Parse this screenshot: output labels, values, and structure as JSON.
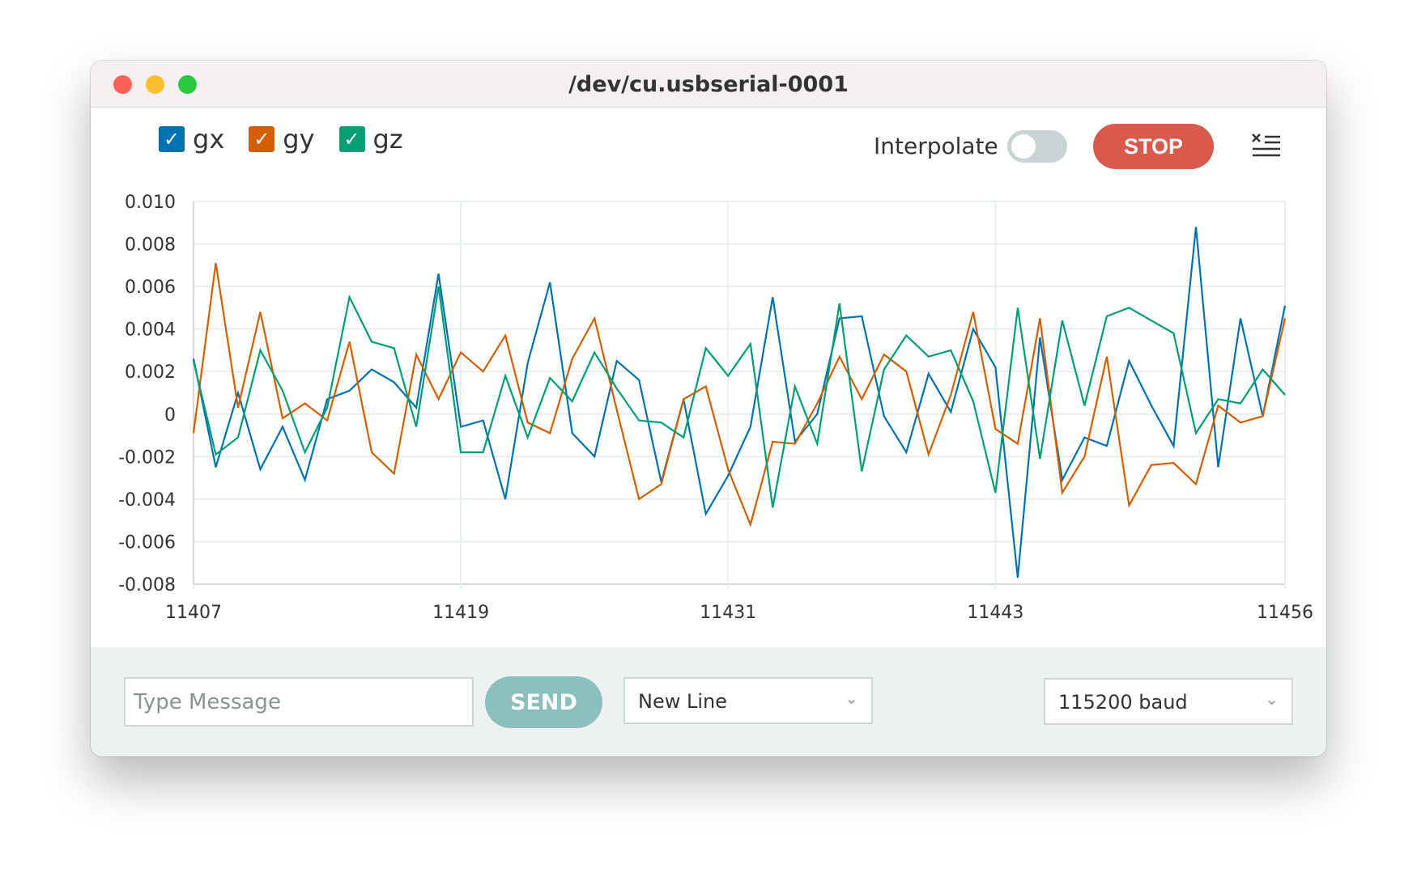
{
  "window": {
    "title": "/dev/cu.usbserial-0001"
  },
  "legend": [
    {
      "label": "gx",
      "color": "#0072b2",
      "checked": true
    },
    {
      "label": "gy",
      "color": "#d55e00",
      "checked": true
    },
    {
      "label": "gz",
      "color": "#009e73",
      "checked": true
    }
  ],
  "controls": {
    "interpolate_label": "Interpolate",
    "interpolate_on": false,
    "stop_label": "STOP",
    "menu_icon": "clear-list-icon"
  },
  "footer": {
    "message_placeholder": "Type Message",
    "send_label": "SEND",
    "line_ending": "New Line",
    "baud": "115200 baud"
  },
  "chart_data": {
    "type": "line",
    "x_start": 11407,
    "x_end": 11456,
    "xticks": [
      "11407",
      "11419",
      "11431",
      "11443",
      "11456"
    ],
    "yticks": [
      "0.010",
      "0.008",
      "0.006",
      "0.004",
      "0.002",
      "0",
      "-0.002",
      "-0.004",
      "-0.006",
      "-0.008"
    ],
    "ylim": [
      -0.008,
      0.01
    ],
    "grid": true,
    "series": [
      {
        "name": "gx",
        "color": "#0072b2",
        "values": [
          0.0026,
          -0.0025,
          0.001,
          -0.0026,
          -0.0006,
          -0.0031,
          0.0007,
          0.0011,
          0.0021,
          0.0015,
          0.0003,
          0.0066,
          -0.0006,
          -0.0003,
          -0.004,
          0.0024,
          0.0062,
          -0.0009,
          -0.002,
          0.0025,
          0.0016,
          -0.0032,
          0.0007,
          -0.0047,
          -0.0029,
          -0.0006,
          0.0055,
          -0.0013,
          0.0,
          0.0045,
          0.0046,
          -0.0001,
          -0.0018,
          0.0019,
          0.0001,
          0.004,
          0.0022,
          -0.0077,
          0.0036,
          -0.0031,
          -0.0011,
          -0.0015,
          0.0025,
          0.0004,
          -0.0015,
          0.0088,
          -0.0025,
          0.0045,
          -0.0001,
          0.0051
        ]
      },
      {
        "name": "gy",
        "color": "#d55e00",
        "values": [
          -0.0009,
          0.0071,
          0.0003,
          0.0048,
          -0.0002,
          0.0005,
          -0.0003,
          0.0034,
          -0.0018,
          -0.0028,
          0.0028,
          0.0007,
          0.0029,
          0.002,
          0.0037,
          -0.0004,
          -0.0009,
          0.0026,
          0.0045,
          0.0002,
          -0.004,
          -0.0033,
          0.0007,
          0.0013,
          -0.0026,
          -0.0052,
          -0.0013,
          -0.0014,
          0.0005,
          0.0027,
          0.0007,
          0.0028,
          0.002,
          -0.0019,
          0.0009,
          0.0048,
          -0.0007,
          -0.0014,
          0.0045,
          -0.0037,
          -0.002,
          0.0027,
          -0.0043,
          -0.0024,
          -0.0023,
          -0.0033,
          0.0004,
          -0.0004,
          -0.0001,
          0.0045
        ]
      },
      {
        "name": "gz",
        "color": "#009e73",
        "values": [
          0.0025,
          -0.0019,
          -0.0011,
          0.003,
          0.0011,
          -0.0018,
          0.0003,
          0.0055,
          0.0034,
          0.0031,
          -0.0006,
          0.006,
          -0.0018,
          -0.0018,
          0.0018,
          -0.0011,
          0.0017,
          0.0006,
          0.0029,
          0.0012,
          -0.0003,
          -0.0004,
          -0.0011,
          0.0031,
          0.0018,
          0.0033,
          -0.0044,
          0.0013,
          -0.0014,
          0.0052,
          -0.0027,
          0.0021,
          0.0037,
          0.0027,
          0.003,
          0.0006,
          -0.0037,
          0.005,
          -0.0021,
          0.0044,
          0.0004,
          0.0046,
          0.005,
          0.0044,
          0.0038,
          -0.0009,
          0.0007,
          0.0005,
          0.0021,
          0.0009
        ]
      }
    ]
  }
}
